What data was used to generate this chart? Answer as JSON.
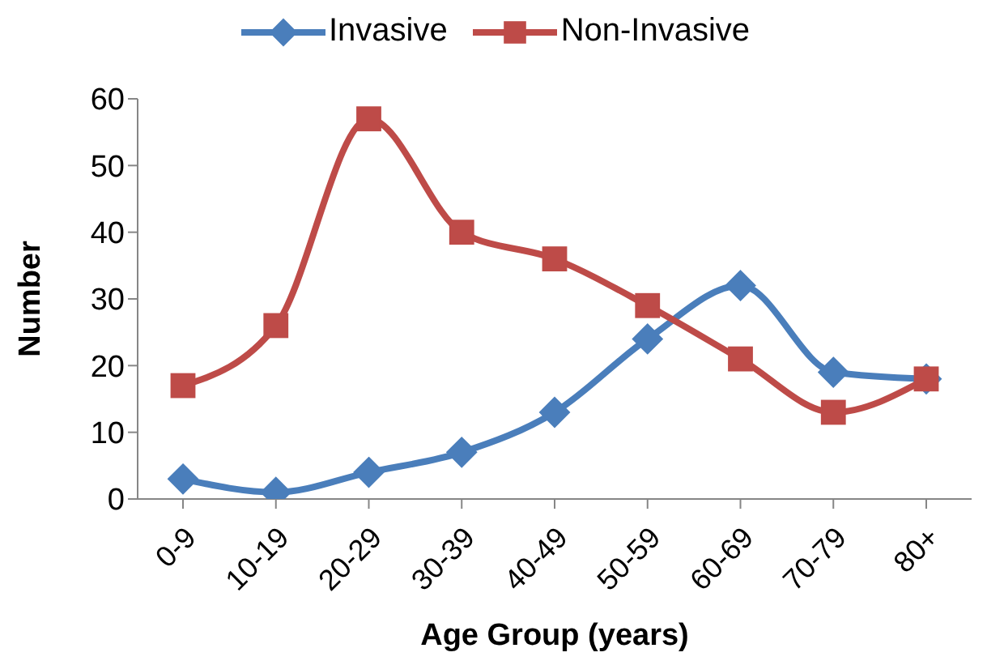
{
  "chart_data": {
    "type": "line",
    "xlabel": "Age Group (years)",
    "ylabel": "Number",
    "categories": [
      "0-9",
      "10-19",
      "20-29",
      "30-39",
      "40-49",
      "50-59",
      "60-69",
      "70-79",
      "80+"
    ],
    "series": [
      {
        "name": "Invasive",
        "color": "#4a7ebb",
        "marker": "diamond",
        "values": [
          3,
          1,
          4,
          7,
          13,
          24,
          32,
          19,
          18
        ]
      },
      {
        "name": "Non-Invasive",
        "color": "#be4b48",
        "marker": "square",
        "values": [
          17,
          26,
          57,
          40,
          36,
          29,
          21,
          13,
          18
        ]
      }
    ],
    "ylim": [
      0,
      60
    ],
    "yticks": [
      0,
      10,
      20,
      30,
      40,
      50,
      60
    ],
    "grid": false,
    "legend": "top",
    "line_style": "solid"
  }
}
